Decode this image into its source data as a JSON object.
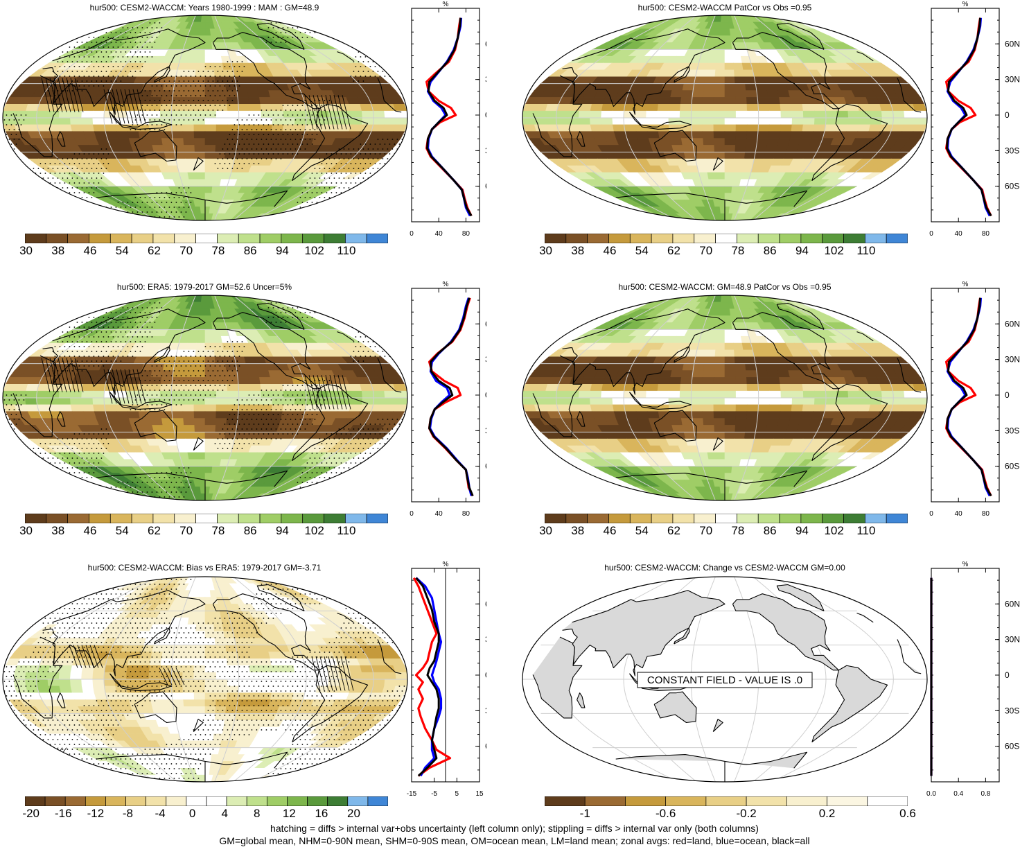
{
  "figure": {
    "footer_line1": "hatching = diffs > internal var+obs uncertainty (left column only); stippling = diffs > internal var only (both columns)",
    "footer_line2": "GM=global mean, NHM=0-90N mean, SHM=0-90S mean, OM=ocean mean, LM=land mean; zonal avgs: red=land, blue=ocean, black=all"
  },
  "legend_colors": {
    "land": "#ff0000",
    "ocean": "#0000ff",
    "all": "#000000"
  },
  "lat_labels": [
    "60N",
    "30N",
    "0",
    "30S",
    "60S"
  ],
  "palettes": {
    "hur": [
      "#5e3c1c",
      "#7a5026",
      "#9a6a33",
      "#c59a3c",
      "#d9b55c",
      "#e8cf86",
      "#f2e2aa",
      "#f8f0cf",
      "#ffffff",
      "#dcedb4",
      "#bfe08c",
      "#9fcd66",
      "#7db64c",
      "#5a9a3c",
      "#3d7d34",
      "#7fb8ea",
      "#3f86d6"
    ],
    "bias": [
      "#5e3c1c",
      "#7a5026",
      "#9a6a33",
      "#c59a3c",
      "#d9b55c",
      "#e8cf86",
      "#f2e2aa",
      "#f8f0cf",
      "#ffffff",
      "#ffffff",
      "#dcedb4",
      "#bfe08c",
      "#9fcd66",
      "#7db64c",
      "#5a9a3c",
      "#3d7d34",
      "#7fb8ea",
      "#3f86d6"
    ],
    "change": [
      "#5e3c1c",
      "#9a6a33",
      "#c59a3c",
      "#d9b55c",
      "#e8cf86",
      "#f2e2aa",
      "#f8f0cf",
      "#fbf6e2",
      "#ffffff"
    ]
  },
  "panels": [
    {
      "id": "tl",
      "title": "hur500: CESM2-WACCM: Years 1980-1999 : MAM : GM=48.9",
      "field": "mean",
      "stipple": true,
      "hatch": true,
      "colorbar": {
        "palette": "hur",
        "labels": [
          "30",
          "38",
          "46",
          "54",
          "62",
          "70",
          "78",
          "86",
          "94",
          "102",
          "110"
        ]
      },
      "zonal": {
        "unit": "%",
        "xticks": [
          "0",
          "40",
          "80"
        ],
        "xlim": [
          0,
          100
        ],
        "zero_line": false
      }
    },
    {
      "id": "tr",
      "title": "hur500: CESM2-WACCM PatCor vs Obs =0.95",
      "field": "mean",
      "stipple": false,
      "hatch": false,
      "colorbar": {
        "palette": "hur",
        "labels": [
          "30",
          "38",
          "46",
          "54",
          "62",
          "70",
          "78",
          "86",
          "94",
          "102",
          "110"
        ]
      },
      "zonal": {
        "unit": "%",
        "xticks": [
          "0",
          "40",
          "80"
        ],
        "xlim": [
          0,
          100
        ],
        "zero_line": false
      }
    },
    {
      "id": "ml",
      "title": "hur500: ERA5: 1979-2017 GM=52.6 Uncer=5%",
      "field": "obs",
      "stipple": true,
      "hatch": true,
      "colorbar": {
        "palette": "hur",
        "labels": [
          "30",
          "38",
          "46",
          "54",
          "62",
          "70",
          "78",
          "86",
          "94",
          "102",
          "110"
        ]
      },
      "zonal": {
        "unit": "%",
        "xticks": [
          "0",
          "40",
          "80"
        ],
        "xlim": [
          0,
          100
        ],
        "zero_line": false
      }
    },
    {
      "id": "mr",
      "title": "hur500: CESM2-WACCM: GM=48.9 PatCor vs Obs =0.95",
      "field": "mean",
      "stipple": false,
      "hatch": false,
      "colorbar": {
        "palette": "hur",
        "labels": [
          "30",
          "38",
          "46",
          "54",
          "62",
          "70",
          "78",
          "86",
          "94",
          "102",
          "110"
        ]
      },
      "zonal": {
        "unit": "%",
        "xticks": [
          "0",
          "40",
          "80"
        ],
        "xlim": [
          0,
          100
        ],
        "zero_line": false
      }
    },
    {
      "id": "bl",
      "title": "hur500: CESM2-WACCM: Bias vs ERA5: 1979-2017 GM=-3.71",
      "field": "bias",
      "stipple": true,
      "hatch": true,
      "colorbar": {
        "palette": "bias",
        "labels": [
          "-20",
          "-16",
          "-12",
          "-8",
          "-4",
          "0",
          "4",
          "8",
          "12",
          "16",
          "20"
        ]
      },
      "zonal": {
        "unit": "%",
        "xticks": [
          "-15",
          "-5",
          "5",
          "15"
        ],
        "xlim": [
          -15,
          15
        ],
        "zero_line": true
      }
    },
    {
      "id": "br",
      "title": "hur500: CESM2-WACCM: Change vs CESM2-WACCM GM=0.00",
      "field": "constant",
      "stipple": false,
      "hatch": false,
      "annotation": "CONSTANT FIELD - VALUE IS .0",
      "colorbar": {
        "palette": "change",
        "labels": [
          "-1",
          "-0.6",
          "-0.2",
          "0.2",
          "0.6"
        ]
      },
      "zonal": {
        "unit": "%",
        "xticks": [
          "0.0",
          "0.4",
          "0.8"
        ],
        "xlim": [
          0,
          1
        ],
        "zero_line": false
      }
    }
  ],
  "chart_data": [
    {
      "type": "line",
      "title": "hur500: CESM2-WACCM: Years 1980-1999 : MAM : GM=48.9",
      "xlabel": "%",
      "ylabel": "",
      "xlim": [
        0,
        100
      ],
      "ylim": [
        -90,
        90
      ],
      "lat": [
        82,
        75,
        65,
        55,
        45,
        35,
        28,
        20,
        12,
        6,
        0,
        -6,
        -12,
        -20,
        -28,
        -35,
        -45,
        -55,
        -63,
        -70,
        -78,
        -85
      ],
      "series": [
        {
          "name": "land",
          "values": [
            72,
            70,
            68,
            64,
            55,
            35,
            22,
            25,
            40,
            58,
            65,
            42,
            30,
            24,
            22,
            28,
            45,
            62,
            75,
            78,
            82,
            88
          ]
        },
        {
          "name": "ocean",
          "values": [
            73,
            72,
            68,
            62,
            52,
            38,
            28,
            24,
            32,
            44,
            50,
            40,
            30,
            25,
            24,
            30,
            46,
            62,
            74,
            77,
            80,
            86
          ]
        },
        {
          "name": "all",
          "values": [
            72,
            71,
            68,
            63,
            53,
            37,
            26,
            25,
            34,
            47,
            52,
            40,
            30,
            24,
            23,
            29,
            46,
            62,
            74,
            77,
            81,
            88
          ]
        }
      ]
    },
    {
      "type": "line",
      "title": "hur500: CESM2-WACCM PatCor vs Obs =0.95",
      "xlabel": "%",
      "ylabel": "",
      "xlim": [
        0,
        100
      ],
      "ylim": [
        -90,
        90
      ],
      "lat": [
        82,
        75,
        65,
        55,
        45,
        35,
        28,
        20,
        12,
        6,
        0,
        -6,
        -12,
        -20,
        -28,
        -35,
        -45,
        -55,
        -63,
        -70,
        -78,
        -85
      ],
      "series": [
        {
          "name": "land",
          "values": [
            72,
            70,
            68,
            64,
            55,
            35,
            22,
            25,
            40,
            58,
            65,
            42,
            30,
            24,
            22,
            28,
            45,
            62,
            75,
            78,
            82,
            88
          ]
        },
        {
          "name": "ocean",
          "values": [
            73,
            72,
            68,
            62,
            52,
            38,
            28,
            24,
            32,
            44,
            50,
            40,
            30,
            25,
            24,
            30,
            46,
            62,
            74,
            77,
            80,
            86
          ]
        },
        {
          "name": "all",
          "values": [
            72,
            71,
            68,
            63,
            53,
            37,
            26,
            25,
            34,
            47,
            52,
            40,
            30,
            24,
            23,
            29,
            46,
            62,
            74,
            77,
            81,
            88
          ]
        }
      ]
    },
    {
      "type": "line",
      "title": "hur500: ERA5: 1979-2017 GM=52.6 Uncer=5%",
      "xlabel": "%",
      "ylabel": "",
      "xlim": [
        0,
        100
      ],
      "ylim": [
        -90,
        90
      ],
      "lat": [
        82,
        75,
        65,
        55,
        45,
        35,
        28,
        20,
        12,
        6,
        0,
        -6,
        -12,
        -20,
        -28,
        -35,
        -45,
        -55,
        -63,
        -70,
        -78,
        -85
      ],
      "series": [
        {
          "name": "land",
          "values": [
            86,
            82,
            78,
            72,
            60,
            38,
            26,
            30,
            48,
            68,
            72,
            50,
            34,
            28,
            26,
            32,
            50,
            66,
            80,
            82,
            84,
            90
          ]
        },
        {
          "name": "ocean",
          "values": [
            84,
            80,
            76,
            70,
            58,
            40,
            30,
            28,
            36,
            52,
            56,
            44,
            34,
            29,
            27,
            34,
            52,
            67,
            80,
            83,
            85,
            88
          ]
        },
        {
          "name": "all",
          "values": [
            85,
            81,
            77,
            71,
            59,
            39,
            28,
            29,
            40,
            56,
            60,
            46,
            34,
            28,
            26,
            33,
            51,
            66,
            80,
            82,
            85,
            90
          ]
        }
      ]
    },
    {
      "type": "line",
      "title": "hur500: CESM2-WACCM: GM=48.9 PatCor vs Obs =0.95",
      "xlabel": "%",
      "ylabel": "",
      "xlim": [
        0,
        100
      ],
      "ylim": [
        -90,
        90
      ],
      "lat": [
        82,
        75,
        65,
        55,
        45,
        35,
        28,
        20,
        12,
        6,
        0,
        -6,
        -12,
        -20,
        -28,
        -35,
        -45,
        -55,
        -63,
        -70,
        -78,
        -85
      ],
      "series": [
        {
          "name": "land",
          "values": [
            72,
            70,
            68,
            64,
            55,
            35,
            22,
            25,
            40,
            58,
            65,
            42,
            30,
            24,
            22,
            28,
            45,
            62,
            75,
            78,
            82,
            88
          ]
        },
        {
          "name": "ocean",
          "values": [
            73,
            72,
            68,
            62,
            52,
            38,
            28,
            24,
            32,
            44,
            50,
            40,
            30,
            25,
            24,
            30,
            46,
            62,
            74,
            77,
            80,
            86
          ]
        },
        {
          "name": "all",
          "values": [
            72,
            71,
            68,
            63,
            53,
            37,
            26,
            25,
            34,
            47,
            52,
            40,
            30,
            24,
            23,
            29,
            46,
            62,
            74,
            77,
            81,
            88
          ]
        }
      ]
    },
    {
      "type": "line",
      "title": "hur500: CESM2-WACCM: Bias vs ERA5: 1979-2017 GM=-3.71",
      "xlabel": "%",
      "ylabel": "",
      "xlim": [
        -15,
        15
      ],
      "ylim": [
        -90,
        90
      ],
      "lat": [
        82,
        75,
        65,
        55,
        45,
        35,
        28,
        20,
        12,
        6,
        0,
        -6,
        -12,
        -20,
        -28,
        -35,
        -45,
        -55,
        -63,
        -70,
        -78,
        -85
      ],
      "series": [
        {
          "name": "land",
          "values": [
            -14,
            -12,
            -10,
            -8,
            -6,
            -4,
            -6,
            -7,
            -8,
            -10,
            -13,
            -10,
            -12,
            -10,
            -12,
            -11,
            -9,
            -6,
            -4,
            2,
            -7,
            -12
          ]
        },
        {
          "name": "ocean",
          "values": [
            -13,
            -9,
            -6,
            -5,
            -4,
            -3,
            -2,
            -3,
            -4,
            -5,
            -6,
            -5,
            -3,
            -2,
            -2,
            -3,
            -5,
            -6,
            -6,
            -5,
            -9,
            -11
          ]
        },
        {
          "name": "all",
          "values": [
            -13,
            -10,
            -8,
            -6,
            -5,
            -3,
            -3,
            -4,
            -5,
            -7,
            -8,
            -6,
            -4,
            -3,
            -3,
            -4,
            -5,
            -6,
            -5,
            -4,
            -8,
            -12
          ]
        }
      ]
    },
    {
      "type": "line",
      "title": "hur500: CESM2-WACCM: Change vs CESM2-WACCM GM=0.00",
      "xlabel": "%",
      "ylabel": "",
      "xlim": [
        0,
        1
      ],
      "ylim": [
        -90,
        90
      ],
      "lat": [
        82,
        -85
      ],
      "series": [
        {
          "name": "land",
          "values": [
            0,
            0
          ]
        },
        {
          "name": "ocean",
          "values": [
            0,
            0
          ]
        },
        {
          "name": "all",
          "values": [
            0,
            0
          ]
        }
      ]
    }
  ]
}
